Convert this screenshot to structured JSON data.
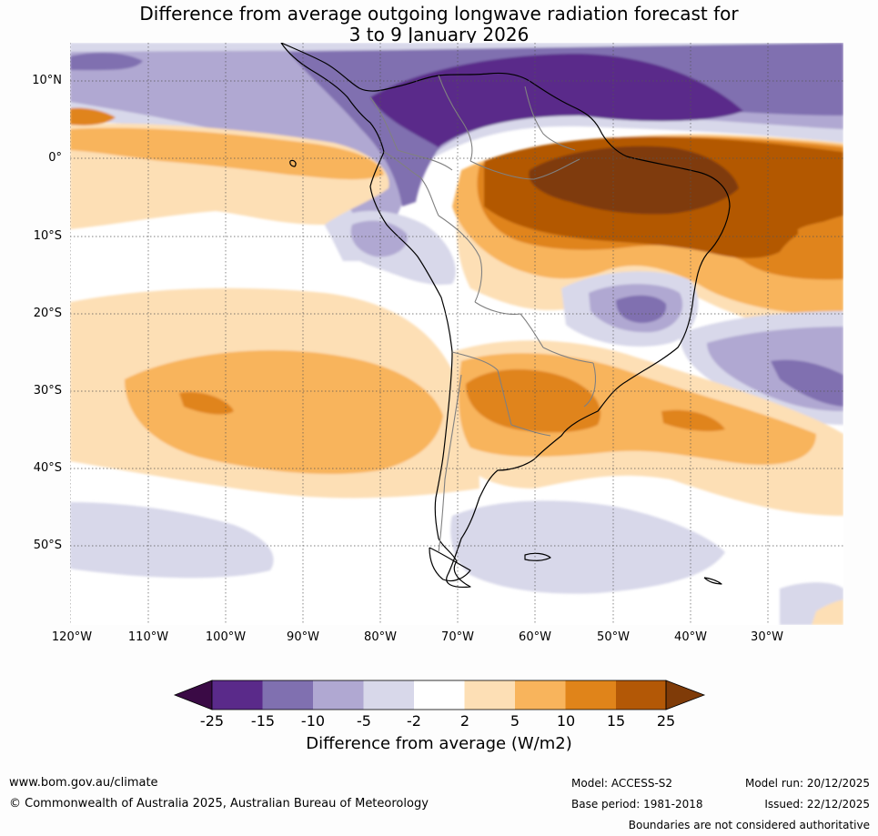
{
  "title": {
    "line1": "Difference from average outgoing longwave radiation forecast for",
    "line2": "3 to 9 January 2026"
  },
  "map": {
    "lat_labels": [
      "10°N",
      "0°",
      "10°S",
      "20°S",
      "30°S",
      "40°S",
      "50°S"
    ],
    "lon_labels": [
      "120°W",
      "110°W",
      "100°W",
      "90°W",
      "80°W",
      "70°W",
      "60°W",
      "50°W",
      "40°W",
      "30°W"
    ]
  },
  "colorbar": {
    "title": "Difference from average (W/m2)",
    "ticks": [
      "-25",
      "-15",
      "-10",
      "-5",
      "-2",
      "2",
      "5",
      "10",
      "15",
      "25"
    ],
    "colors": [
      "#3a0a45",
      "#5a2a8a",
      "#8070b0",
      "#b0a8d2",
      "#d8d8ea",
      "#ffffff",
      "#fddfb5",
      "#f8b45c",
      "#e0841a",
      "#b35806",
      "#7f3b08"
    ]
  },
  "footer": {
    "website": "www.bom.gov.au/climate",
    "copyright": "© Commonwealth of Australia 2025, Australian Bureau of Meteorology",
    "model": "Model: ACCESS-S2",
    "base_period": "Base period: 1981-2018",
    "model_run": "Model run: 20/12/2025",
    "issued": "Issued: 22/12/2025",
    "disclaimer": "Boundaries are not considered authoritative"
  }
}
